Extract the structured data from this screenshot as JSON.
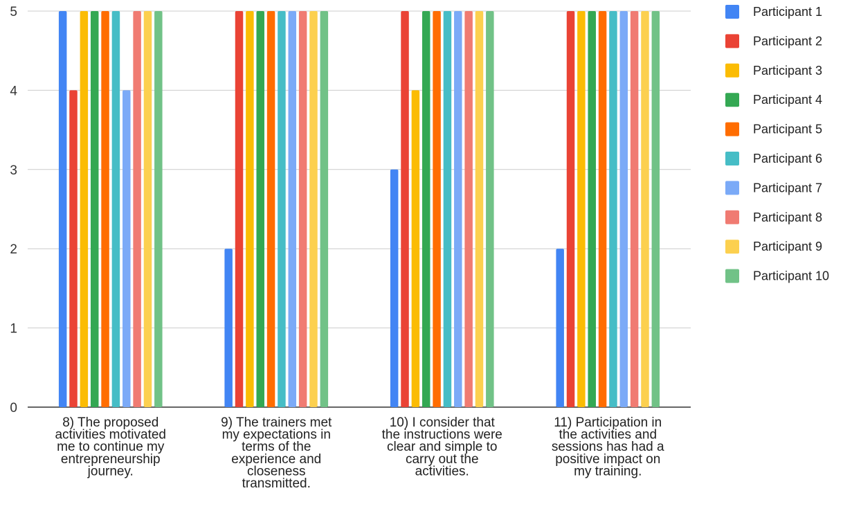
{
  "chart_data": {
    "type": "bar",
    "categories": [
      [
        "8) The proposed",
        "activities motivated",
        "me to continue my",
        "entrepreneurship",
        "journey."
      ],
      [
        "9) The trainers met",
        "my expectations in",
        "terms of the",
        "experience and",
        "closeness",
        "transmitted."
      ],
      [
        "10) I consider that",
        "the instructions were",
        "clear and simple to",
        "carry out the",
        "activities."
      ],
      [
        "11) Participation in",
        "the activities and",
        "sessions has had a",
        "positive impact on",
        "my training."
      ]
    ],
    "series": [
      {
        "name": "Participant 1",
        "color": "#4285f4",
        "values": [
          5,
          2,
          3,
          2
        ]
      },
      {
        "name": "Participant 2",
        "color": "#ea4335",
        "values": [
          4,
          5,
          5,
          5
        ]
      },
      {
        "name": "Participant 3",
        "color": "#fbbc04",
        "values": [
          5,
          5,
          4,
          5
        ]
      },
      {
        "name": "Participant 4",
        "color": "#34a853",
        "values": [
          5,
          5,
          5,
          5
        ]
      },
      {
        "name": "Participant 5",
        "color": "#ff6d01",
        "values": [
          5,
          5,
          5,
          5
        ]
      },
      {
        "name": "Participant 6",
        "color": "#46bdc6",
        "values": [
          5,
          5,
          5,
          5
        ]
      },
      {
        "name": "Participant 7",
        "color": "#7baaf7",
        "values": [
          4,
          5,
          5,
          5
        ]
      },
      {
        "name": "Participant 8",
        "color": "#f07b72",
        "values": [
          5,
          5,
          5,
          5
        ]
      },
      {
        "name": "Participant 9",
        "color": "#fcd04f",
        "values": [
          5,
          5,
          5,
          5
        ]
      },
      {
        "name": "Participant 10",
        "color": "#71c287",
        "values": [
          5,
          5,
          5,
          5
        ]
      }
    ],
    "ylim": [
      0,
      5
    ],
    "yticks": [
      "0",
      "1",
      "2",
      "3",
      "4",
      "5"
    ],
    "grid": true,
    "legend_position": "right"
  }
}
